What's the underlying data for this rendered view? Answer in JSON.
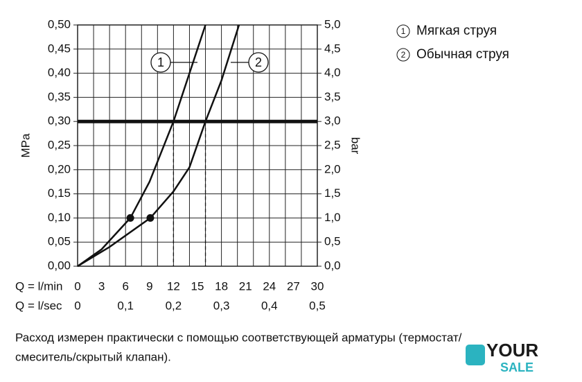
{
  "chart_data": {
    "type": "line",
    "xlabel": "Q = l/min",
    "x2label": "Q = l/sec",
    "ylabel": "MPa",
    "y2label": "bar",
    "xlim": [
      0,
      30
    ],
    "xticks": [
      0,
      3,
      6,
      9,
      12,
      15,
      18,
      21,
      24,
      27,
      30
    ],
    "xgrid": [
      0,
      2,
      4,
      6,
      8,
      10,
      12,
      14,
      16,
      18,
      20,
      22,
      24,
      26,
      28,
      30
    ],
    "x2lim": [
      0,
      0.5
    ],
    "x2ticks": [
      0,
      {
        "value": 0.1,
        "label": "0,1"
      },
      {
        "value": 0.2,
        "label": "0,2"
      },
      {
        "value": 0.3,
        "label": "0,3"
      },
      {
        "value": 0.4,
        "label": "0,4"
      },
      {
        "value": 0.5,
        "label": "0,5"
      }
    ],
    "ylim": [
      0,
      0.5
    ],
    "yticks": [
      {
        "value": 0,
        "label": "0,00"
      },
      {
        "value": 0.05,
        "label": "0,05"
      },
      {
        "value": 0.1,
        "label": "0,10"
      },
      {
        "value": 0.15,
        "label": "0,15"
      },
      {
        "value": 0.2,
        "label": "0,20"
      },
      {
        "value": 0.25,
        "label": "0,25"
      },
      {
        "value": 0.3,
        "label": "0,30"
      },
      {
        "value": 0.35,
        "label": "0,35"
      },
      {
        "value": 0.4,
        "label": "0,40"
      },
      {
        "value": 0.45,
        "label": "0,45"
      },
      {
        "value": 0.5,
        "label": "0,50"
      }
    ],
    "y2lim": [
      0,
      5
    ],
    "y2ticks": [
      {
        "value": 0,
        "label": "0,0"
      },
      {
        "value": 0.5,
        "label": "0,5"
      },
      {
        "value": 1,
        "label": "1,0"
      },
      {
        "value": 1.5,
        "label": "1,5"
      },
      {
        "value": 2,
        "label": "2,0"
      },
      {
        "value": 2.5,
        "label": "2,5"
      },
      {
        "value": 3,
        "label": "3,0"
      },
      {
        "value": 3.5,
        "label": "3,5"
      },
      {
        "value": 4,
        "label": "4,0"
      },
      {
        "value": 4.5,
        "label": "4,5"
      },
      {
        "value": 5,
        "label": "5,0"
      }
    ],
    "grid": true,
    "hline": 0.3,
    "vlines": [
      12,
      16
    ],
    "series": [
      {
        "name": "Мягкая струя",
        "label": "1",
        "color": "#111111",
        "x": [
          0,
          3,
          6.6,
          9,
          12,
          14,
          16
        ],
        "values": [
          0,
          0.035,
          0.1,
          0.175,
          0.3,
          0.4,
          0.5
        ],
        "marker_x": 6.6,
        "marker_y": 0.1
      },
      {
        "name": "Обычная струя",
        "label": "2",
        "color": "#111111",
        "x": [
          0,
          4,
          9.1,
          12,
          14,
          16,
          18,
          20.2
        ],
        "values": [
          0,
          0.04,
          0.1,
          0.155,
          0.205,
          0.3,
          0.385,
          0.5
        ],
        "marker_x": 9.1,
        "marker_y": 0.1
      }
    ]
  },
  "footnote": [
    "Расход измерен практически с помощью соответствующей арматуры (термостат/",
    "смеситель/скрытый клапан)."
  ],
  "logo": {
    "line1": "YOUR",
    "line2": "SALE"
  }
}
